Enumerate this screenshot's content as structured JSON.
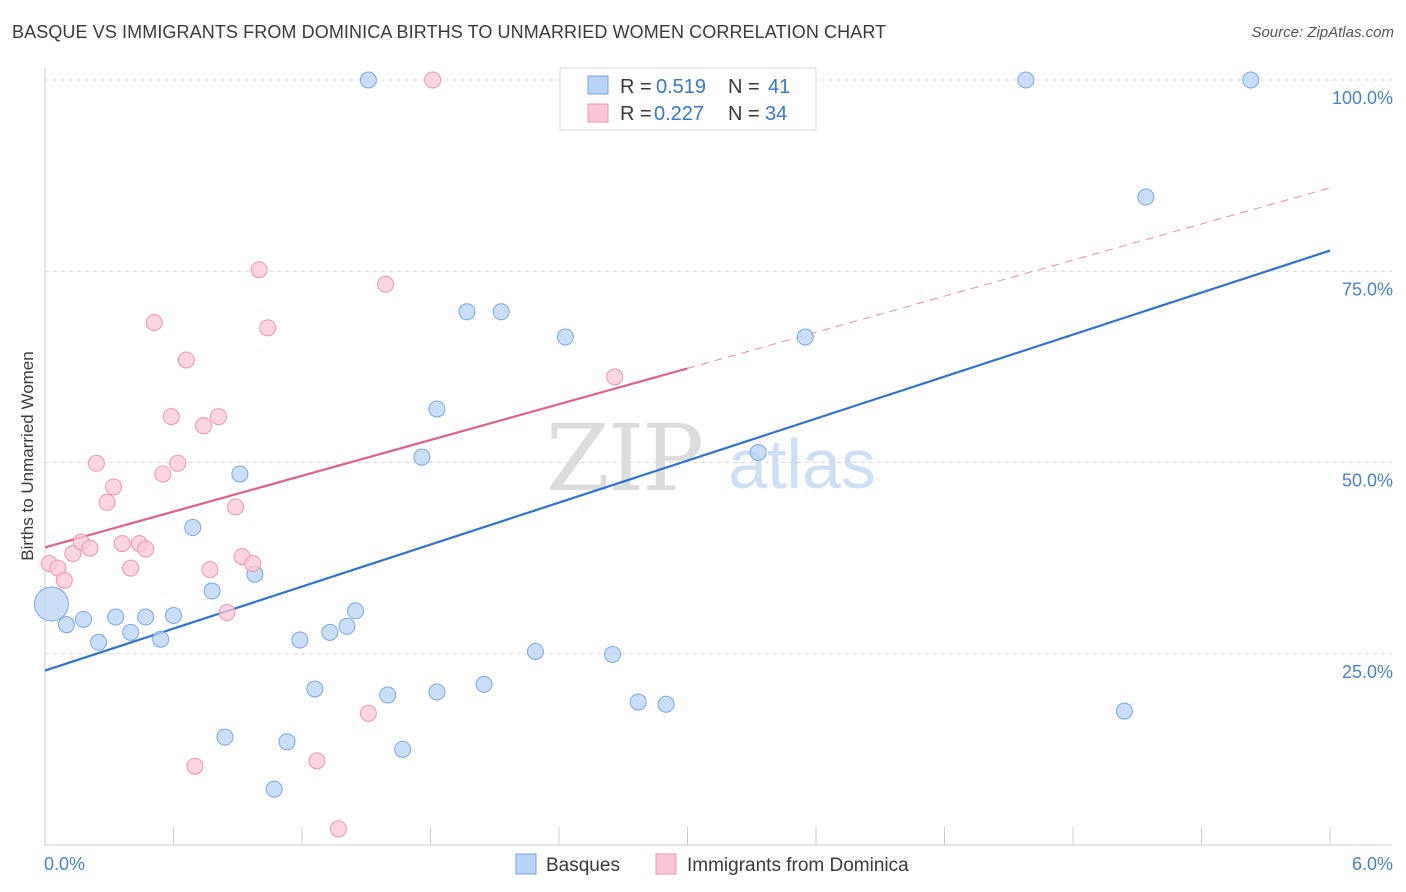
{
  "title": "BASQUE VS IMMIGRANTS FROM DOMINICA BIRTHS TO UNMARRIED WOMEN CORRELATION CHART",
  "source": "Source: ZipAtlas.com",
  "watermark": {
    "zip": "ZIP",
    "atlas": "atlas"
  },
  "legend": {
    "r_label": "R =",
    "n_label": "N =",
    "series": [
      {
        "r": "0.519",
        "n": "41"
      },
      {
        "r": "0.227",
        "n": "34"
      }
    ]
  },
  "colors": {
    "basques_fill": "#b8d3f5",
    "basques_stroke": "#7aa8e0",
    "basques_line": "#2f72d0",
    "dominica_fill": "#f9c8d7",
    "dominica_stroke": "#eb97b2",
    "dominica_line": "#e0608a",
    "tick_text": "#4a7fd0",
    "grid": "#d9d9d9"
  },
  "chart_data": {
    "type": "scatter",
    "title": "BASQUE VS IMMIGRANTS FROM DOMINICA BIRTHS TO UNMARRIED WOMEN CORRELATION CHART",
    "xlabel": "",
    "ylabel": "Births to Unmarried Women",
    "xlim": [
      0,
      6
    ],
    "ylim": [
      0,
      100
    ],
    "x_tick_labels": [
      "0.0%",
      "6.0%"
    ],
    "y_ticks": [
      25,
      50,
      75,
      100
    ],
    "y_tick_labels": [
      "25.0%",
      "50.0%",
      "75.0%",
      "100.0%"
    ],
    "grid": true,
    "legend_placement": "top-center",
    "series": [
      {
        "name": "Basques",
        "r": 0.519,
        "n": 41,
        "trend": {
          "x0": 0,
          "y0": 22.8,
          "x1": 6,
          "y1": 77.7
        },
        "points": [
          {
            "x": 0.03,
            "y": 31.5,
            "big": true
          },
          {
            "x": 0.1,
            "y": 28.8
          },
          {
            "x": 0.18,
            "y": 29.5
          },
          {
            "x": 0.25,
            "y": 26.5
          },
          {
            "x": 0.33,
            "y": 29.8
          },
          {
            "x": 0.4,
            "y": 27.8
          },
          {
            "x": 0.47,
            "y": 29.8
          },
          {
            "x": 0.54,
            "y": 26.9
          },
          {
            "x": 0.6,
            "y": 30.0
          },
          {
            "x": 0.69,
            "y": 41.5
          },
          {
            "x": 0.78,
            "y": 33.2
          },
          {
            "x": 0.84,
            "y": 14.1
          },
          {
            "x": 0.91,
            "y": 48.5
          },
          {
            "x": 0.98,
            "y": 35.4
          },
          {
            "x": 1.07,
            "y": 7.3
          },
          {
            "x": 1.13,
            "y": 13.5
          },
          {
            "x": 1.19,
            "y": 26.8
          },
          {
            "x": 1.26,
            "y": 20.4
          },
          {
            "x": 1.33,
            "y": 27.8
          },
          {
            "x": 1.41,
            "y": 28.6
          },
          {
            "x": 1.45,
            "y": 30.6
          },
          {
            "x": 1.51,
            "y": 100.0
          },
          {
            "x": 1.6,
            "y": 19.6
          },
          {
            "x": 1.67,
            "y": 12.5
          },
          {
            "x": 1.76,
            "y": 50.7
          },
          {
            "x": 1.83,
            "y": 57.0
          },
          {
            "x": 1.83,
            "y": 20.0
          },
          {
            "x": 1.97,
            "y": 69.7
          },
          {
            "x": 2.05,
            "y": 21.0
          },
          {
            "x": 2.13,
            "y": 69.7
          },
          {
            "x": 2.29,
            "y": 25.3
          },
          {
            "x": 2.43,
            "y": 66.4
          },
          {
            "x": 2.65,
            "y": 24.9
          },
          {
            "x": 2.77,
            "y": 18.7
          },
          {
            "x": 2.9,
            "y": 18.4
          },
          {
            "x": 3.33,
            "y": 51.3
          },
          {
            "x": 3.55,
            "y": 66.4
          },
          {
            "x": 4.58,
            "y": 100.0
          },
          {
            "x": 5.04,
            "y": 17.5
          },
          {
            "x": 5.14,
            "y": 84.7
          },
          {
            "x": 5.63,
            "y": 100.0
          }
        ]
      },
      {
        "name": "Immigrants from Dominica",
        "r": 0.227,
        "n": 34,
        "trend": {
          "x0": 0,
          "y0": 38.9,
          "x1": 3.0,
          "y1": 62.3
        },
        "trend_extension": {
          "x0": 3.0,
          "y0": 62.3,
          "x1": 6,
          "y1": 85.9
        },
        "points": [
          {
            "x": 0.02,
            "y": 36.8
          },
          {
            "x": 0.06,
            "y": 36.2
          },
          {
            "x": 0.09,
            "y": 34.6
          },
          {
            "x": 0.13,
            "y": 38.1
          },
          {
            "x": 0.17,
            "y": 39.6
          },
          {
            "x": 0.21,
            "y": 38.8
          },
          {
            "x": 0.24,
            "y": 49.9
          },
          {
            "x": 0.29,
            "y": 44.8
          },
          {
            "x": 0.32,
            "y": 46.8
          },
          {
            "x": 0.36,
            "y": 39.4
          },
          {
            "x": 0.4,
            "y": 36.2
          },
          {
            "x": 0.44,
            "y": 39.4
          },
          {
            "x": 0.47,
            "y": 38.7
          },
          {
            "x": 0.51,
            "y": 68.3
          },
          {
            "x": 0.55,
            "y": 48.5
          },
          {
            "x": 0.59,
            "y": 56.0
          },
          {
            "x": 0.62,
            "y": 49.9
          },
          {
            "x": 0.66,
            "y": 63.4
          },
          {
            "x": 0.7,
            "y": 10.3
          },
          {
            "x": 0.74,
            "y": 54.8
          },
          {
            "x": 0.77,
            "y": 36.0
          },
          {
            "x": 0.81,
            "y": 56.0
          },
          {
            "x": 0.85,
            "y": 30.4
          },
          {
            "x": 0.89,
            "y": 44.2
          },
          {
            "x": 0.92,
            "y": 37.7
          },
          {
            "x": 0.97,
            "y": 36.8
          },
          {
            "x": 1.0,
            "y": 75.2
          },
          {
            "x": 1.04,
            "y": 67.6
          },
          {
            "x": 1.27,
            "y": 11.0
          },
          {
            "x": 1.37,
            "y": 2.1
          },
          {
            "x": 1.51,
            "y": 17.2
          },
          {
            "x": 1.59,
            "y": 73.3
          },
          {
            "x": 1.81,
            "y": 100.0
          },
          {
            "x": 2.66,
            "y": 61.2
          }
        ]
      }
    ]
  }
}
